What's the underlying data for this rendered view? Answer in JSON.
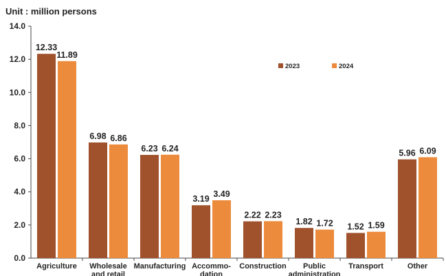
{
  "chart_data": {
    "type": "bar",
    "unit_label": "Unit : million persons",
    "categories": [
      [
        "Agriculture"
      ],
      [
        "Wholesale",
        "and retail"
      ],
      [
        "Manufacturing"
      ],
      [
        "Accommo-",
        "dation"
      ],
      [
        "Construction"
      ],
      [
        "Public",
        "administration"
      ],
      [
        "Transport"
      ],
      [
        "Other"
      ]
    ],
    "series": [
      {
        "name": "2023",
        "color": "#a0522d",
        "values": [
          12.33,
          6.98,
          6.23,
          3.19,
          2.22,
          1.82,
          1.52,
          5.96
        ]
      },
      {
        "name": "2024",
        "color": "#ed8b3c",
        "values": [
          11.89,
          6.86,
          6.24,
          3.49,
          2.23,
          1.72,
          1.59,
          6.09
        ]
      }
    ],
    "ylim": [
      0,
      14
    ],
    "yticks": [
      "0.0",
      "2.0",
      "4.0",
      "6.0",
      "8.0",
      "10.0",
      "12.0",
      "14.0"
    ],
    "legend_position": "top-right",
    "grid": false
  }
}
